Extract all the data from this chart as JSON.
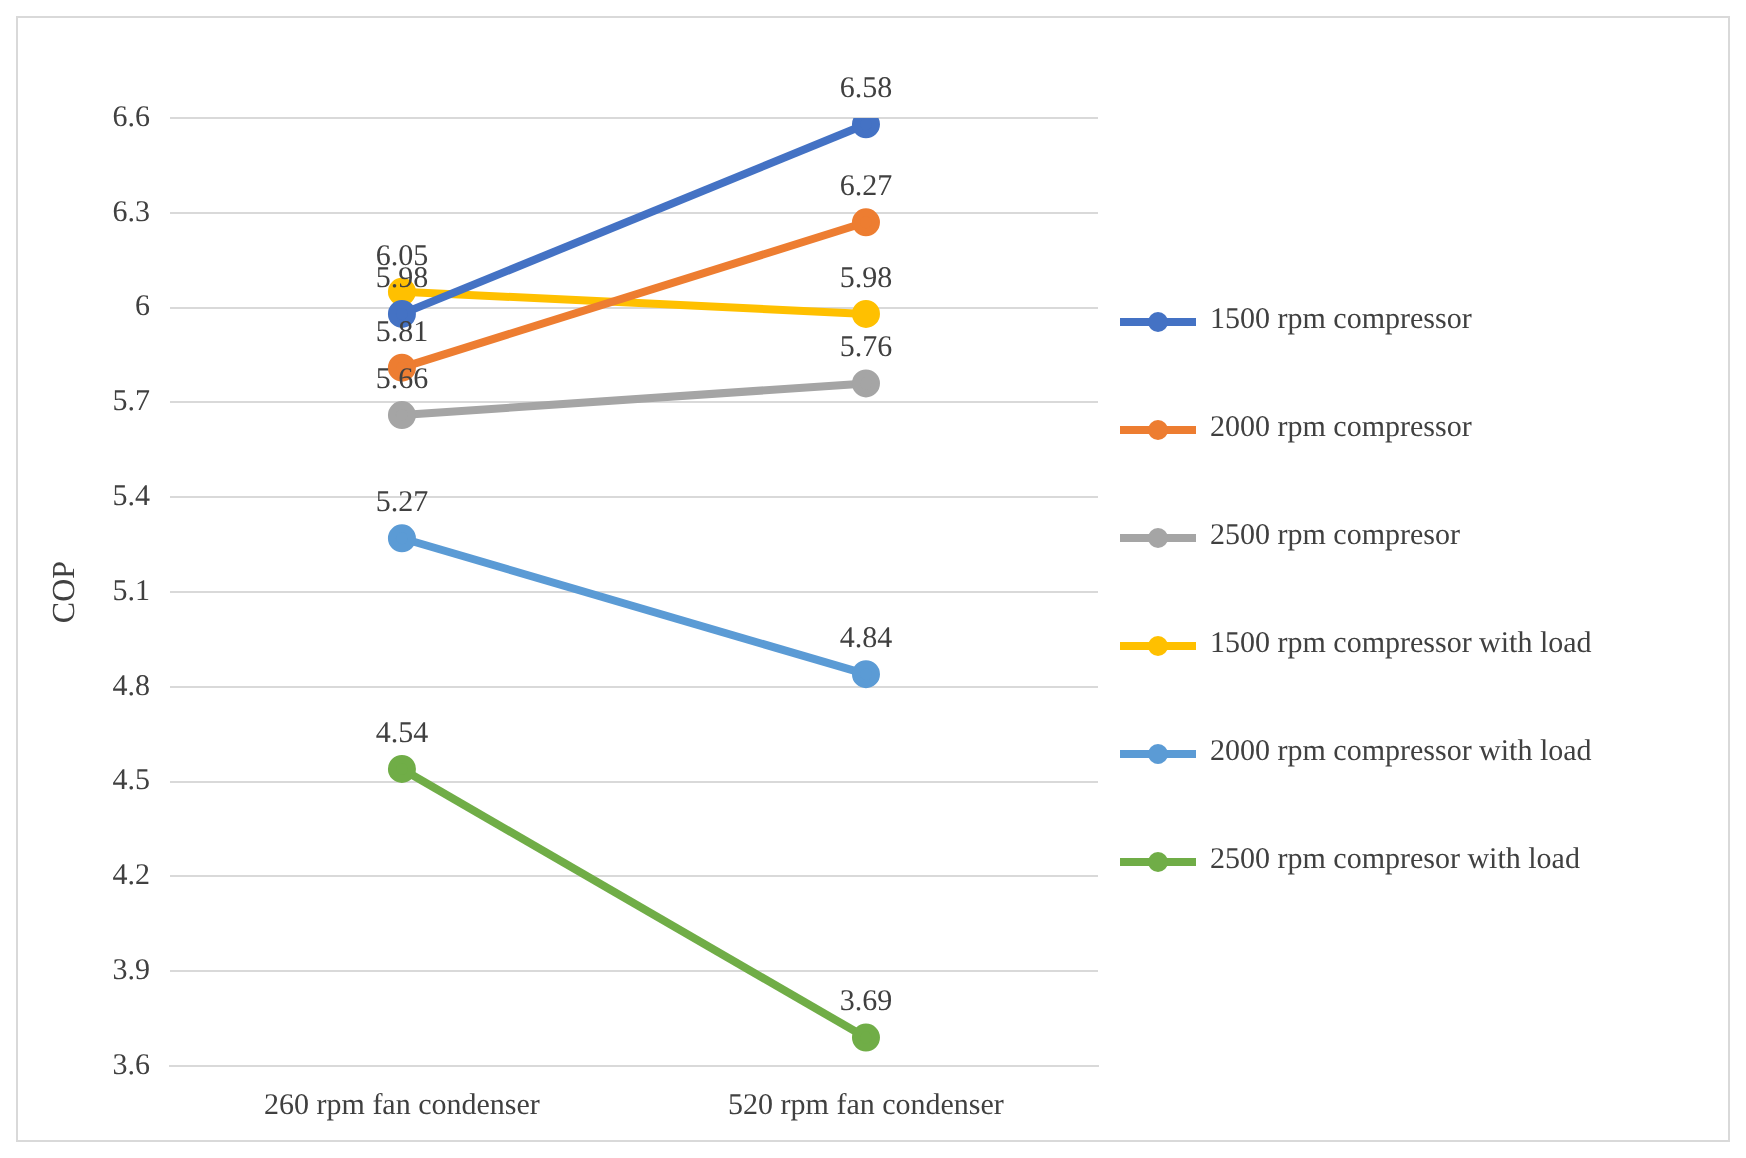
{
  "chart_data": {
    "type": "line",
    "ylabel": "COP",
    "categories": [
      "260 rpm fan condenser",
      "520 rpm fan condenser"
    ],
    "series": [
      {
        "name": "1500 rpm compressor",
        "color": "#4472c4",
        "values": [
          5.98,
          6.58
        ]
      },
      {
        "name": "2000 rpm compressor",
        "color": "#ed7d31",
        "values": [
          5.81,
          6.27
        ]
      },
      {
        "name": "2500 rpm compresor",
        "color": "#a5a5a5",
        "values": [
          5.66,
          5.76
        ]
      },
      {
        "name": "1500 rpm compressor with load",
        "color": "#ffc000",
        "values": [
          6.05,
          5.98
        ]
      },
      {
        "name": "2000 rpm compressor with load",
        "color": "#5b9bd5",
        "values": [
          5.27,
          4.84
        ]
      },
      {
        "name": "2500 rpm compresor with load",
        "color": "#70ad47",
        "values": [
          4.54,
          3.69
        ]
      }
    ],
    "ylim": [
      3.6,
      6.6
    ],
    "yticks": [
      3.6,
      3.9,
      4.2,
      4.5,
      4.8,
      5.1,
      5.4,
      5.7,
      6,
      6.3,
      6.6
    ],
    "grid": "y",
    "legend": "right",
    "marker": "circle",
    "line_style": "solid",
    "data_labels": true
  }
}
